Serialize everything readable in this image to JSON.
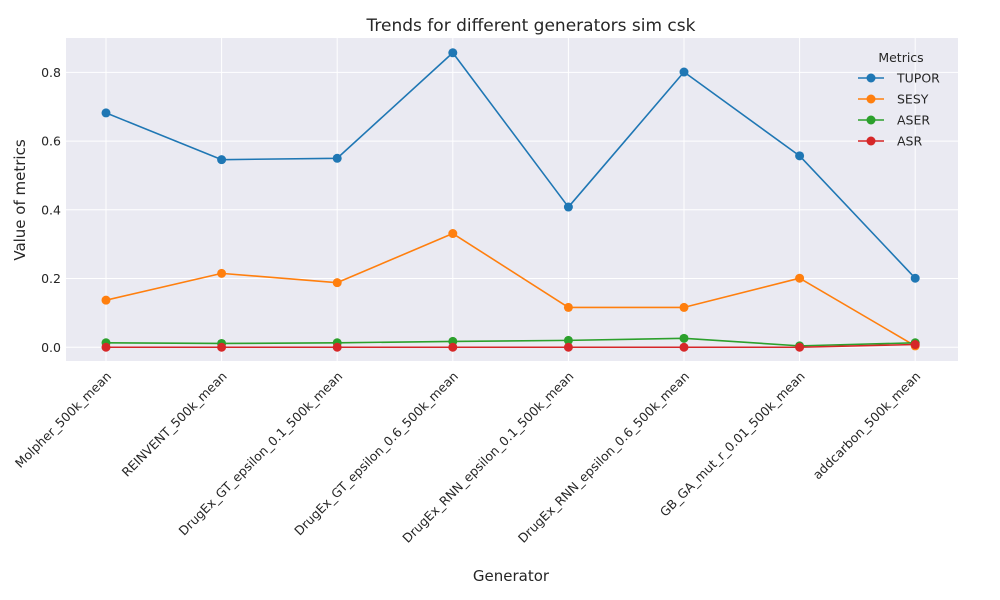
{
  "chart_data": {
    "type": "line",
    "title": "Trends for different generators sim csk",
    "xlabel": "Generator",
    "ylabel": "Value of metrics",
    "categories": [
      "Molpher_500k_mean",
      "REINVENT_500k_mean",
      "DrugEx_GT_epsilon_0.1_500k_mean",
      "DrugEx_GT_epsilon_0.6_500k_mean",
      "DrugEx_RNN_epsilon_0.1_500k_mean",
      "DrugEx_RNN_epsilon_0.6_500k_mean",
      "GB_GA_mut_r_0.01_500k_mean",
      "addcarbon_500k_mean"
    ],
    "series": [
      {
        "name": "TUPOR",
        "color": "#1f77b4",
        "values": [
          0.682,
          0.546,
          0.55,
          0.857,
          0.408,
          0.801,
          0.557,
          0.201
        ]
      },
      {
        "name": "SESY",
        "color": "#ff7f0e",
        "values": [
          0.137,
          0.215,
          0.188,
          0.331,
          0.116,
          0.116,
          0.201,
          0.004
        ]
      },
      {
        "name": "ASER",
        "color": "#2ca02c",
        "values": [
          0.013,
          0.011,
          0.013,
          0.017,
          0.02,
          0.026,
          0.004,
          0.013
        ]
      },
      {
        "name": "ASR",
        "color": "#d62728",
        "values": [
          0.0,
          0.0,
          0.0,
          0.0,
          0.0,
          0.0,
          0.0,
          0.008
        ]
      }
    ],
    "yticks": [
      0.0,
      0.2,
      0.4,
      0.6,
      0.8
    ],
    "ytick_labels": [
      "0.0",
      "0.2",
      "0.4",
      "0.6",
      "0.8"
    ],
    "ylim": [
      -0.04,
      0.9
    ],
    "grid": true,
    "legend": {
      "title": "Metrics",
      "placement": "top-right"
    },
    "background": "#eaeaf2"
  }
}
